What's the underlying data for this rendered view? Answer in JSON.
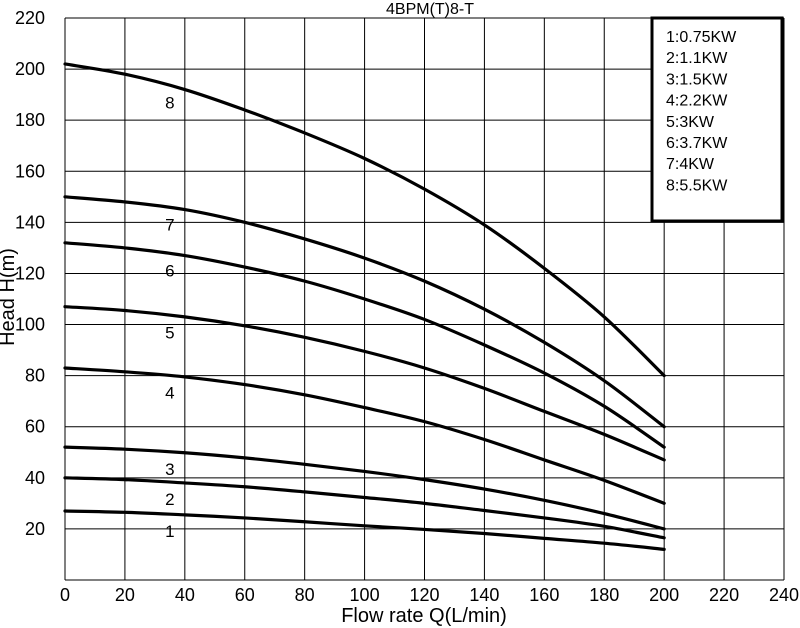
{
  "chart_data": {
    "type": "line",
    "title": "4BPM(T)8-T",
    "xlabel": "Flow rate Q(L/min)",
    "ylabel": "Head H(m)",
    "xlim": [
      0,
      240
    ],
    "ylim": [
      0,
      220
    ],
    "x_ticks": [
      "0",
      "20",
      "40",
      "60",
      "80",
      "100",
      "120",
      "140",
      "160",
      "180",
      "200",
      "220",
      "240"
    ],
    "y_ticks": [
      "20",
      "40",
      "60",
      "80",
      "100",
      "120",
      "140",
      "160",
      "180",
      "200",
      "220"
    ],
    "grid": true,
    "legend_position": "top-right",
    "legend": [
      "1:0.75KW",
      "2:1.1KW",
      "3:1.5KW",
      "4:2.2KW",
      "5:3KW",
      "6:3.7KW",
      "7:4KW",
      "8:5.5KW"
    ],
    "x": [
      0,
      20,
      40,
      60,
      80,
      100,
      120,
      140,
      160,
      180,
      200
    ],
    "series": [
      {
        "name": "1",
        "values": [
          27,
          26.5,
          25.5,
          24.3,
          22.8,
          21.2,
          19.8,
          18.2,
          16.3,
          14.4,
          12
        ]
      },
      {
        "name": "2",
        "values": [
          40,
          39.3,
          38,
          36.5,
          34.5,
          32.3,
          30,
          27.2,
          24.3,
          21,
          16.5
        ]
      },
      {
        "name": "3",
        "values": [
          52,
          51.2,
          49.8,
          47.8,
          45.3,
          42.5,
          39.3,
          35.6,
          31.2,
          26,
          20
        ]
      },
      {
        "name": "4",
        "values": [
          83,
          81.5,
          79.5,
          76.5,
          72.5,
          67.5,
          62,
          55,
          47,
          39,
          30
        ]
      },
      {
        "name": "5",
        "values": [
          107,
          105.5,
          103,
          99.5,
          95,
          89.5,
          83,
          75,
          66,
          57,
          47
        ]
      },
      {
        "name": "6",
        "values": [
          132,
          130,
          127,
          122.5,
          117,
          110,
          102,
          92,
          81,
          68,
          52
        ]
      },
      {
        "name": "7",
        "values": [
          150,
          148,
          145,
          140,
          133.5,
          126,
          117,
          106,
          93,
          78,
          60
        ]
      },
      {
        "name": "8",
        "values": [
          202,
          198,
          192,
          184,
          175,
          165,
          153,
          139,
          122,
          103,
          80
        ]
      }
    ],
    "curve_label_x": 35
  }
}
